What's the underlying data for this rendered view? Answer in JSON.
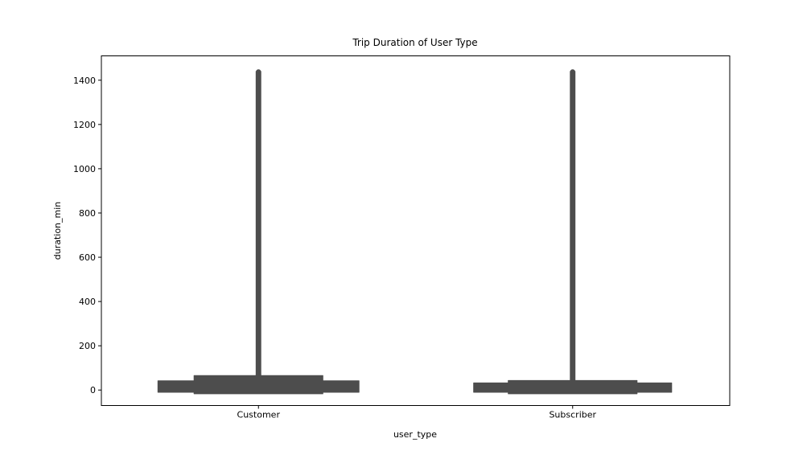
{
  "chart_data": {
    "type": "violin",
    "title": "Trip Duration of User Type",
    "xlabel": "user_type",
    "ylabel": "duration_min",
    "ylim": [
      -70,
      1510
    ],
    "yticks": [
      0,
      200,
      400,
      600,
      800,
      1000,
      1200,
      1400
    ],
    "categories": [
      "Customer",
      "Subscriber"
    ],
    "series": [
      {
        "category": "Customer",
        "min": -17,
        "max": 1440,
        "profile": [
          {
            "y": -17,
            "w": 0.82
          },
          {
            "y": -10,
            "w": 0.82
          },
          {
            "y": -10,
            "w": 1.28
          },
          {
            "y": 42,
            "w": 1.28
          },
          {
            "y": 42,
            "w": 0.82
          },
          {
            "y": 65,
            "w": 0.82
          },
          {
            "y": 65,
            "w": 0.03
          },
          {
            "y": 1440,
            "w": 0.03
          }
        ]
      },
      {
        "category": "Subscriber",
        "min": -17,
        "max": 1440,
        "profile": [
          {
            "y": -17,
            "w": 0.82
          },
          {
            "y": -10,
            "w": 0.82
          },
          {
            "y": -10,
            "w": 1.26
          },
          {
            "y": 32,
            "w": 1.26
          },
          {
            "y": 32,
            "w": 0.82
          },
          {
            "y": 43,
            "w": 0.82
          },
          {
            "y": 43,
            "w": 0.03
          },
          {
            "y": 1440,
            "w": 0.03
          }
        ]
      }
    ],
    "colors": {
      "violin": "#4d4d4d",
      "axis": "#000000"
    },
    "grid": false,
    "legend": "none"
  }
}
